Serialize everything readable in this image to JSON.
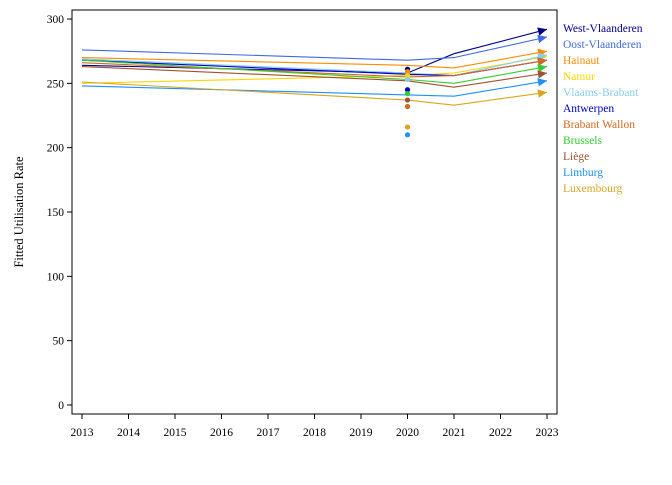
{
  "chart_data": {
    "type": "line",
    "title": "",
    "xlabel": "",
    "ylabel": "Fitted Utilisation Rate",
    "xlim": [
      2013,
      2023
    ],
    "ylim": [
      0,
      300
    ],
    "x_ticks": [
      2013,
      2014,
      2015,
      2016,
      2017,
      2018,
      2019,
      2020,
      2021,
      2022,
      2023
    ],
    "y_ticks": [
      0,
      50,
      100,
      150,
      200,
      250,
      300
    ],
    "grid": false,
    "legend_placement": "right, outside plot, labels at line ends",
    "x": [
      2013,
      2020,
      2021,
      2023
    ],
    "series": [
      {
        "name": "West-Vlaanderen",
        "color": "#00008B",
        "values": [
          264,
          258,
          273,
          292
        ],
        "point_2020": 261
      },
      {
        "name": "Oost-Vlaanderen",
        "color": "#4169E1",
        "values": [
          276,
          268,
          270,
          286
        ],
        "point_2020": 257
      },
      {
        "name": "Hainaut",
        "color": "#FF8C00",
        "values": [
          270,
          264,
          262,
          275
        ],
        "point_2020": 259
      },
      {
        "name": "Namur",
        "color": "#FFD700",
        "values": [
          250,
          256,
          258,
          271
        ],
        "point_2020": 256
      },
      {
        "name": "Vlaams-Brabant",
        "color": "#87CEEB",
        "values": [
          269,
          258,
          256,
          272
        ],
        "point_2020": 253
      },
      {
        "name": "Antwerpen",
        "color": "#0000CD",
        "values": [
          268,
          257,
          256,
          268
        ],
        "point_2020": 245
      },
      {
        "name": "Brabant Wallon",
        "color": "#D2691E",
        "values": [
          266,
          255,
          256,
          268
        ],
        "point_2020": 232
      },
      {
        "name": "Brussels",
        "color": "#32CD32",
        "values": [
          268,
          253,
          250,
          263
        ],
        "point_2020": 242
      },
      {
        "name": "Liège",
        "color": "#A0522D",
        "values": [
          263,
          252,
          247,
          258
        ],
        "point_2020": 237
      },
      {
        "name": "Limburg",
        "color": "#1E90FF",
        "values": [
          248,
          241,
          240,
          252
        ],
        "point_2020": 210
      },
      {
        "name": "Luxembourg",
        "color": "#DAA520",
        "values": [
          251,
          237,
          233,
          243
        ],
        "point_2020": 216
      }
    ]
  }
}
